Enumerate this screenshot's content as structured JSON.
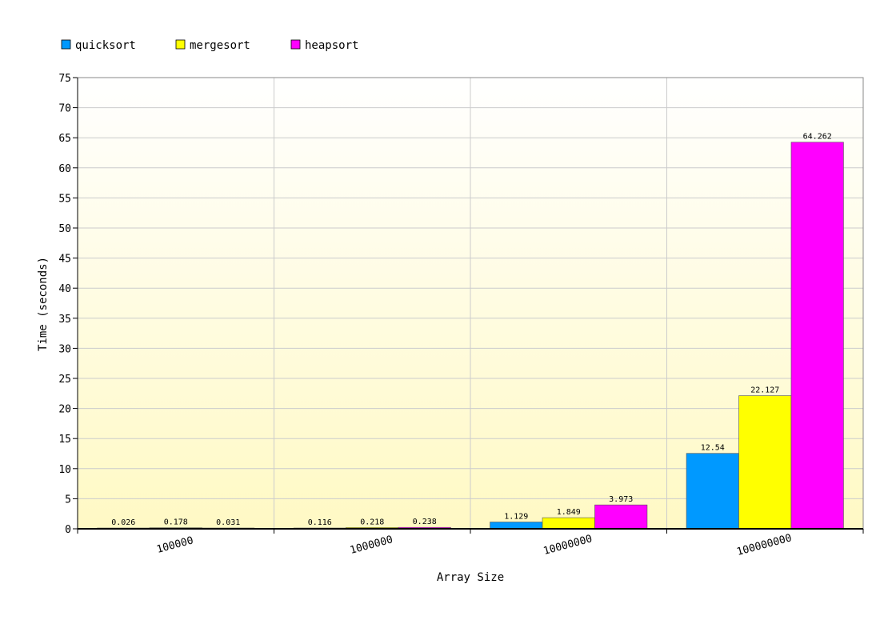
{
  "chart_data": {
    "type": "bar",
    "title": "",
    "xlabel": "Array Size",
    "ylabel": "Time (seconds)",
    "categories": [
      "100000",
      "1000000",
      "10000000",
      "100000000"
    ],
    "series": [
      {
        "name": "quicksort",
        "color": "#0099ff",
        "values": [
          0.026,
          0.116,
          1.129,
          12.54
        ],
        "labels": [
          "0.026",
          "0.116",
          "1.129",
          "12.54"
        ]
      },
      {
        "name": "mergesort",
        "color": "#ffff00",
        "values": [
          0.178,
          0.218,
          1.849,
          22.127
        ],
        "labels": [
          "0.178",
          "0.218",
          "1.849",
          "22.127"
        ]
      },
      {
        "name": "heapsort",
        "color": "#ff00ff",
        "values": [
          0.031,
          0.238,
          3.973,
          64.262
        ],
        "labels": [
          "0.031",
          "0.238",
          "3.973",
          "64.262"
        ]
      }
    ],
    "ylim": [
      0,
      75
    ],
    "ytick_step": 5,
    "grid": true,
    "legend_position": "top-left",
    "plot_background": [
      "#ffffff",
      "#fff9c4"
    ]
  }
}
